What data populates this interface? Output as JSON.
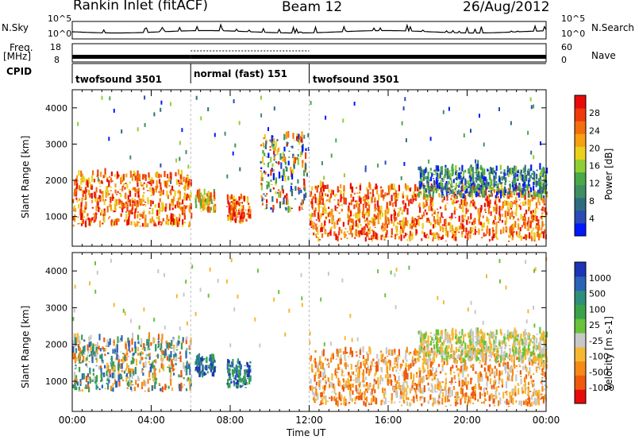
{
  "header": {
    "station": "Rankin Inlet (fitACF)",
    "beam": "Beam 12",
    "date": "26/Aug/2012"
  },
  "aux_panels": {
    "nsky_label": "N.Sky",
    "nsearch_label": "N.Search",
    "freq_label_1": "Freq.",
    "freq_label_2": "[MHz]",
    "nave_label": "Nave",
    "cpid_label": "CPID",
    "noise_ticks_left": [
      "10^5",
      "10^0"
    ],
    "noise_ticks_right": [
      "10^5",
      "10^0"
    ],
    "freq_ticks_left": [
      "18",
      "8"
    ],
    "nave_ticks_right": [
      "60",
      "0"
    ]
  },
  "cpid_segments": [
    {
      "label": "twofsound 3501",
      "start_hour": 0,
      "end_hour": 6
    },
    {
      "label": "normal (fast) 151",
      "start_hour": 6,
      "end_hour": 12
    },
    {
      "label": "twofsound 3501",
      "start_hour": 12,
      "end_hour": 24
    }
  ],
  "x_axis": {
    "label": "Time UT",
    "ticks": [
      "00:00",
      "04:00",
      "08:00",
      "12:00",
      "16:00",
      "20:00",
      "00:00"
    ]
  },
  "chart_data": [
    {
      "type": "heatmap",
      "title": "Power",
      "ylabel": "Slant Range [km]",
      "xlabel": "Time UT",
      "xlim_hours": [
        0,
        24
      ],
      "ylim_km": [
        180,
        4500
      ],
      "yticks": [
        1000,
        2000,
        3000,
        4000
      ],
      "colorbar": {
        "label": "Power [dB]",
        "ticks": [
          4,
          8,
          12,
          16,
          20,
          24,
          28
        ],
        "colors": [
          "#0018ff",
          "#2a4bb8",
          "#2f6c7f",
          "#3f8e62",
          "#48a948",
          "#8fcf33",
          "#e9d11c",
          "#f7a012",
          "#f46e0e",
          "#ef3a0a",
          "#e80b0b"
        ]
      },
      "echo_regions": [
        {
          "t_start": 0.0,
          "t_end": 6.0,
          "r_min": 700,
          "r_max": 2150,
          "level": "high"
        },
        {
          "t_start": 6.2,
          "t_end": 7.2,
          "r_min": 1100,
          "r_max": 1600,
          "level": "mid"
        },
        {
          "t_start": 7.8,
          "t_end": 9.0,
          "r_min": 800,
          "r_max": 1500,
          "level": "high"
        },
        {
          "t_start": 9.5,
          "t_end": 11.8,
          "r_min": 1100,
          "r_max": 3200,
          "level": "mixed"
        },
        {
          "t_start": 12.0,
          "t_end": 24.0,
          "r_min": 300,
          "r_max": 1800,
          "level": "high"
        },
        {
          "t_start": 17.5,
          "t_end": 24.0,
          "r_min": 1500,
          "r_max": 2300,
          "level": "low"
        }
      ]
    },
    {
      "type": "heatmap",
      "title": "Velocity",
      "ylabel": "Slant Range [km]",
      "xlabel": "Time UT",
      "xlim_hours": [
        0,
        24
      ],
      "ylim_km": [
        180,
        4500
      ],
      "yticks": [
        1000,
        2000,
        3000,
        4000
      ],
      "colorbar": {
        "label": "Velocity [m s-1]",
        "ticks": [
          1000,
          500,
          100,
          25,
          -25,
          -100,
          -500,
          -1000
        ],
        "colors": [
          "#1c34b5",
          "#2a63b8",
          "#2f8f7a",
          "#3aa34a",
          "#68c33b",
          "#c8c8c8",
          "#f7b733",
          "#f58a16",
          "#ef5a0d",
          "#e80b0b"
        ]
      },
      "echo_regions": [
        {
          "t_start": 0.0,
          "t_end": 6.0,
          "r_min": 700,
          "r_max": 2150,
          "sign": "mixed"
        },
        {
          "t_start": 6.2,
          "t_end": 7.2,
          "r_min": 1100,
          "r_max": 1600,
          "sign": "toward"
        },
        {
          "t_start": 7.8,
          "t_end": 9.0,
          "r_min": 800,
          "r_max": 1500,
          "sign": "toward"
        },
        {
          "t_start": 12.0,
          "t_end": 24.0,
          "r_min": 300,
          "r_max": 1800,
          "sign": "away"
        },
        {
          "t_start": 17.5,
          "t_end": 24.0,
          "r_min": 1500,
          "r_max": 2300,
          "sign": "near-zero"
        }
      ]
    }
  ]
}
